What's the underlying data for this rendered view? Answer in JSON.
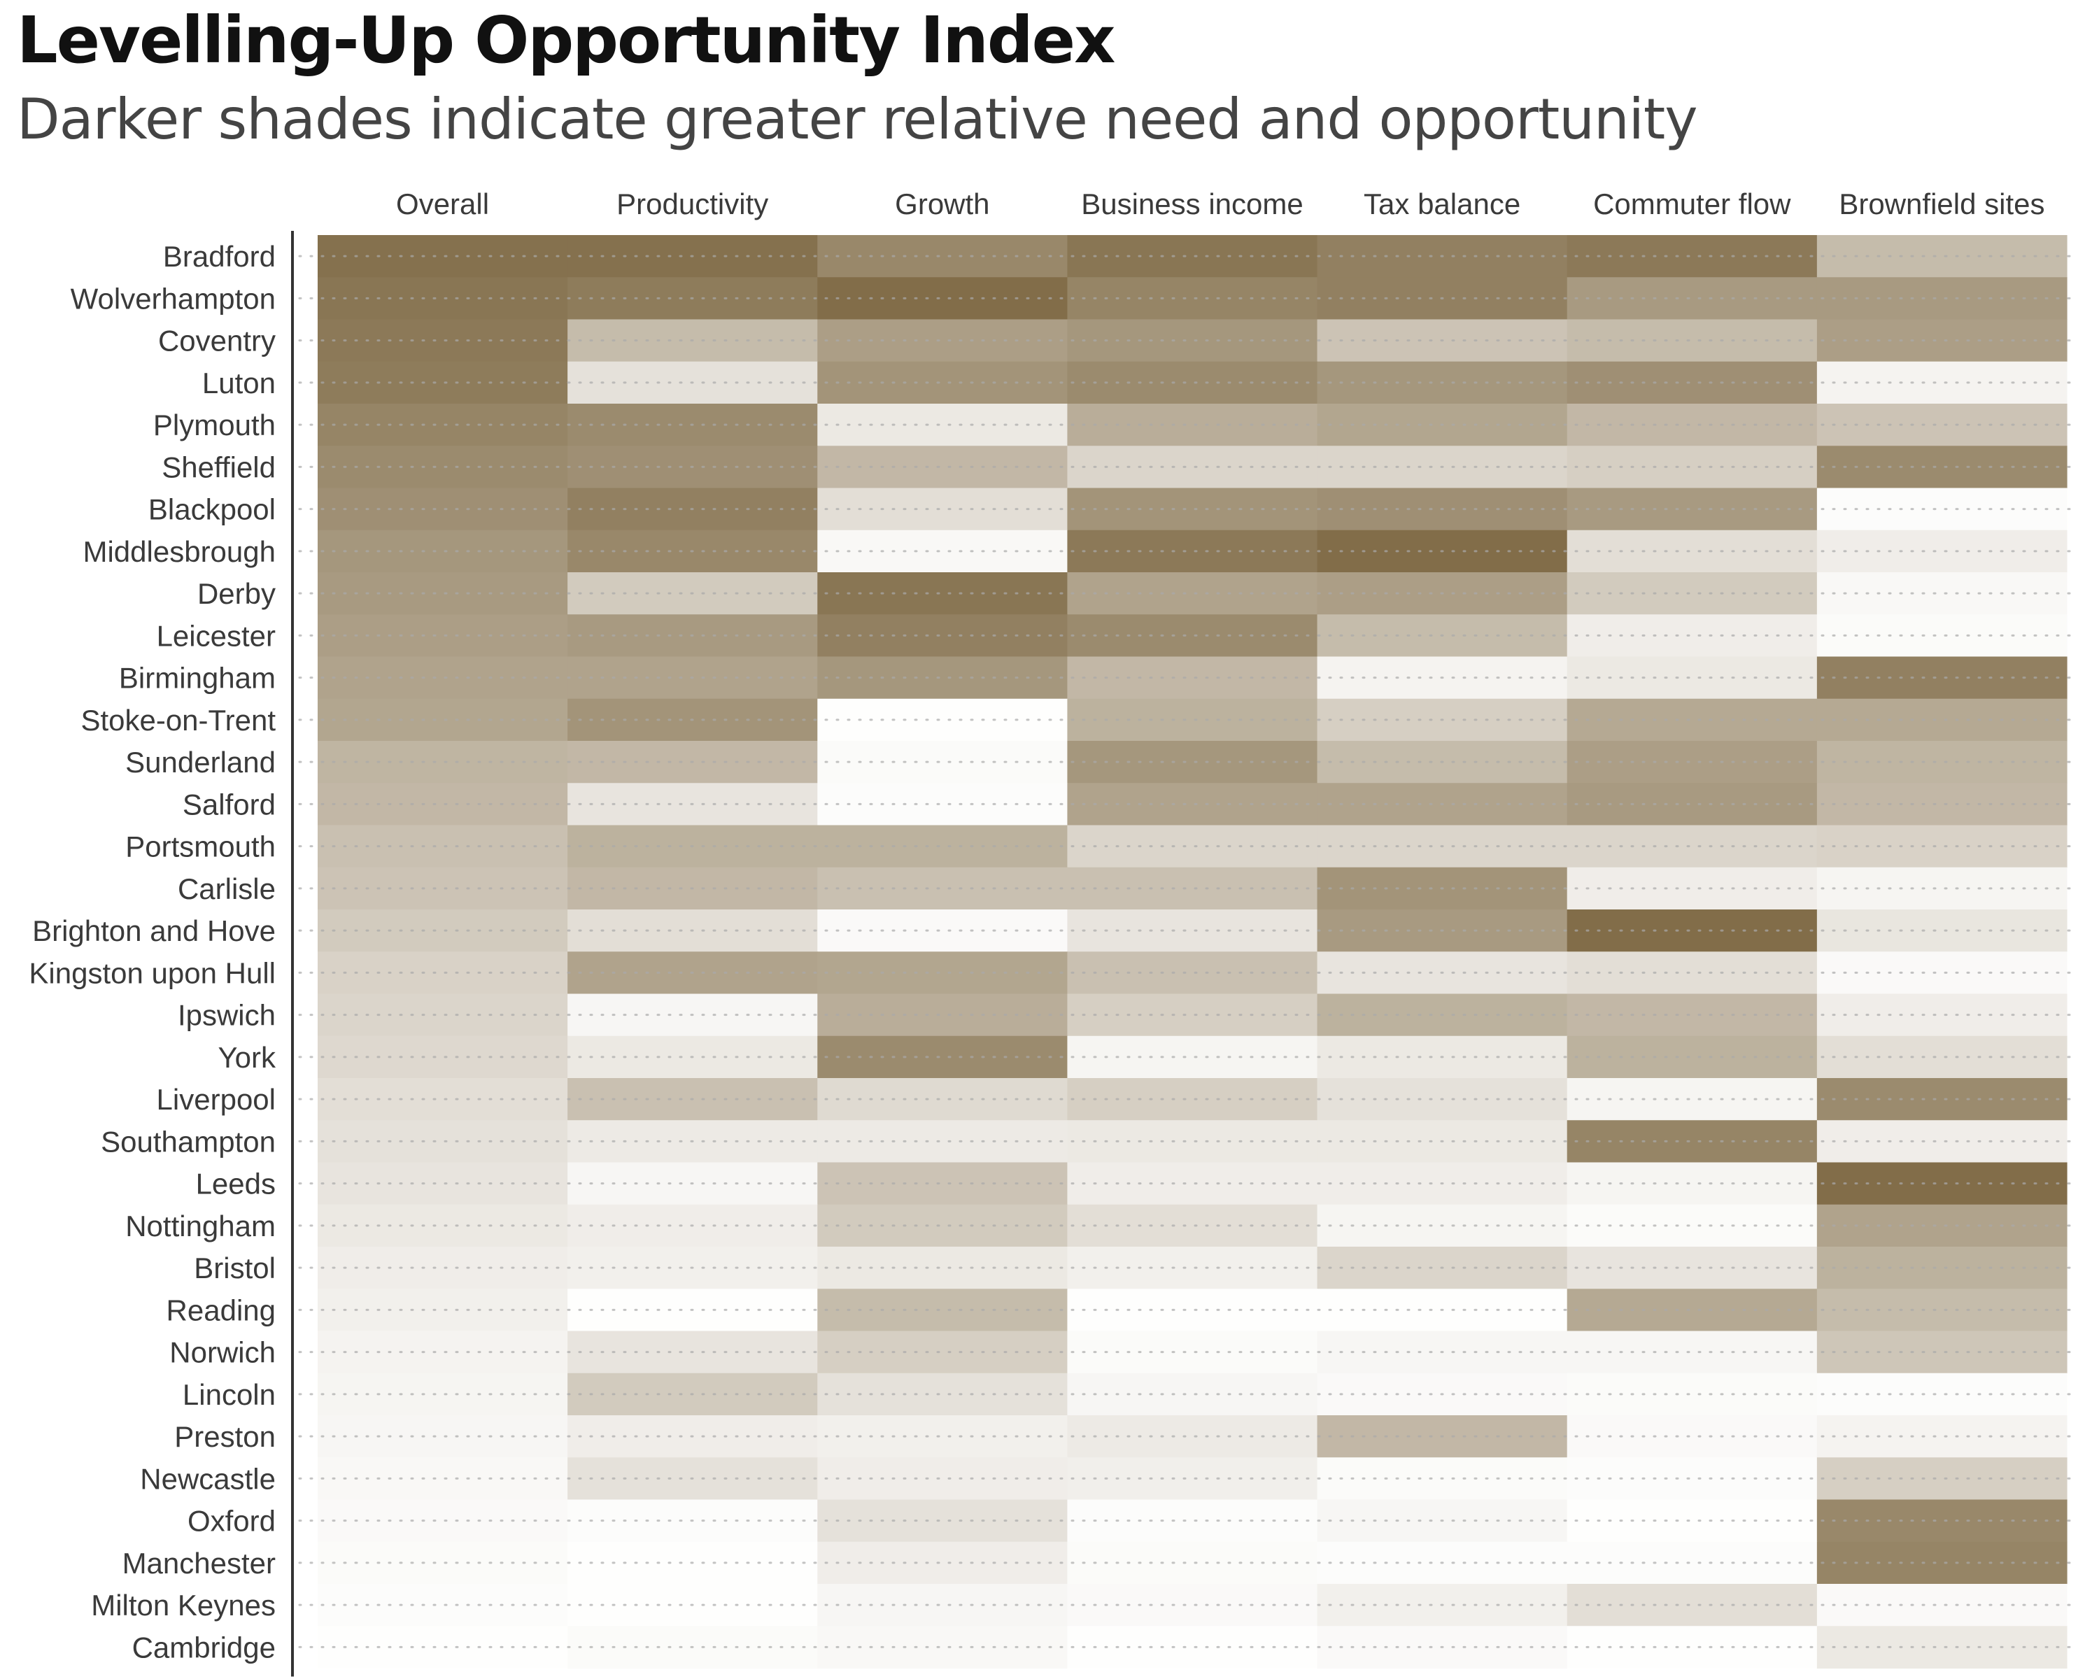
{
  "title": "Levelling-Up Opportunity Index",
  "subtitle": "Darker shades indicate greater relative need and opportunity",
  "colors": {
    "max": "#7f6a45",
    "min": "#ffffff",
    "text": "#3a3a3a",
    "dots": "#aaaaaa",
    "axis": "#333333"
  },
  "chart_data": {
    "type": "heatmap",
    "title": "Levelling-Up Opportunity Index",
    "subtitle": "Darker shades indicate greater relative need and opportunity",
    "value_range": [
      0,
      1
    ],
    "grid": "dotted row guides",
    "columns": [
      "Overall",
      "Productivity",
      "Growth",
      "Business income",
      "Tax balance",
      "Commuter flow",
      "Brownfield sites"
    ],
    "rows": [
      {
        "name": "Bradford",
        "values": [
          0.95,
          0.95,
          0.8,
          0.92,
          0.85,
          0.9,
          0.45
        ]
      },
      {
        "name": "Wolverhampton",
        "values": [
          0.92,
          0.88,
          0.98,
          0.82,
          0.85,
          0.68,
          0.68
        ]
      },
      {
        "name": "Coventry",
        "values": [
          0.9,
          0.45,
          0.65,
          0.7,
          0.4,
          0.45,
          0.65
        ]
      },
      {
        "name": "Luton",
        "values": [
          0.88,
          0.2,
          0.72,
          0.78,
          0.7,
          0.75,
          0.08
        ]
      },
      {
        "name": "Plymouth",
        "values": [
          0.82,
          0.78,
          0.15,
          0.55,
          0.6,
          0.48,
          0.4
        ]
      },
      {
        "name": "Sheffield",
        "values": [
          0.78,
          0.75,
          0.48,
          0.28,
          0.28,
          0.32,
          0.78
        ]
      },
      {
        "name": "Blackpool",
        "values": [
          0.75,
          0.85,
          0.22,
          0.72,
          0.75,
          0.68,
          0.02
        ]
      },
      {
        "name": "Middlesbrough",
        "values": [
          0.7,
          0.8,
          0.05,
          0.9,
          0.98,
          0.22,
          0.12
        ]
      },
      {
        "name": "Derby",
        "values": [
          0.68,
          0.35,
          0.92,
          0.62,
          0.65,
          0.35,
          0.05
        ]
      },
      {
        "name": "Leicester",
        "values": [
          0.65,
          0.68,
          0.85,
          0.78,
          0.45,
          0.12,
          0.03
        ]
      },
      {
        "name": "Birmingham",
        "values": [
          0.62,
          0.62,
          0.7,
          0.48,
          0.08,
          0.15,
          0.85
        ]
      },
      {
        "name": "Stoke-on-Trent",
        "values": [
          0.6,
          0.72,
          0.01,
          0.52,
          0.32,
          0.58,
          0.58
        ]
      },
      {
        "name": "Sunderland",
        "values": [
          0.5,
          0.48,
          0.03,
          0.7,
          0.45,
          0.65,
          0.5
        ]
      },
      {
        "name": "Salford",
        "values": [
          0.48,
          0.18,
          0.02,
          0.62,
          0.62,
          0.68,
          0.48
        ]
      },
      {
        "name": "Portsmouth",
        "values": [
          0.42,
          0.52,
          0.52,
          0.28,
          0.28,
          0.28,
          0.3
        ]
      },
      {
        "name": "Carlisle",
        "values": [
          0.4,
          0.48,
          0.42,
          0.42,
          0.72,
          0.12,
          0.07
        ]
      },
      {
        "name": "Brighton and Hove",
        "values": [
          0.35,
          0.22,
          0.04,
          0.18,
          0.68,
          0.98,
          0.17
        ]
      },
      {
        "name": "Kingston upon Hull",
        "values": [
          0.3,
          0.62,
          0.6,
          0.42,
          0.18,
          0.22,
          0.04
        ]
      },
      {
        "name": "Ipswich",
        "values": [
          0.28,
          0.06,
          0.55,
          0.32,
          0.52,
          0.48,
          0.12
        ]
      },
      {
        "name": "York",
        "values": [
          0.26,
          0.15,
          0.78,
          0.07,
          0.15,
          0.52,
          0.22
        ]
      },
      {
        "name": "Liverpool",
        "values": [
          0.22,
          0.42,
          0.25,
          0.32,
          0.2,
          0.07,
          0.78
        ]
      },
      {
        "name": "Southampton",
        "values": [
          0.2,
          0.14,
          0.14,
          0.15,
          0.15,
          0.82,
          0.12
        ]
      },
      {
        "name": "Leeds",
        "values": [
          0.18,
          0.06,
          0.4,
          0.12,
          0.12,
          0.07,
          0.98
        ]
      },
      {
        "name": "Nottingham",
        "values": [
          0.15,
          0.12,
          0.35,
          0.22,
          0.07,
          0.03,
          0.62
        ]
      },
      {
        "name": "Bristol",
        "values": [
          0.12,
          0.1,
          0.15,
          0.1,
          0.28,
          0.18,
          0.52
        ]
      },
      {
        "name": "Reading",
        "values": [
          0.1,
          0.01,
          0.45,
          0.01,
          0.01,
          0.58,
          0.45
        ]
      },
      {
        "name": "Norwich",
        "values": [
          0.08,
          0.18,
          0.32,
          0.03,
          0.06,
          0.06,
          0.38
        ]
      },
      {
        "name": "Lincoln",
        "values": [
          0.07,
          0.35,
          0.2,
          0.06,
          0.04,
          0.03,
          0.02
        ]
      },
      {
        "name": "Preston",
        "values": [
          0.06,
          0.12,
          0.1,
          0.14,
          0.48,
          0.04,
          0.08
        ]
      },
      {
        "name": "Newcastle",
        "values": [
          0.05,
          0.2,
          0.12,
          0.11,
          0.03,
          0.02,
          0.32
        ]
      },
      {
        "name": "Oxford",
        "values": [
          0.04,
          0.02,
          0.2,
          0.02,
          0.06,
          0.01,
          0.8
        ]
      },
      {
        "name": "Manchester",
        "values": [
          0.03,
          0.01,
          0.12,
          0.03,
          0.02,
          0.02,
          0.82
        ]
      },
      {
        "name": "Milton Keynes",
        "values": [
          0.02,
          0.01,
          0.06,
          0.04,
          0.1,
          0.22,
          0.04
        ]
      },
      {
        "name": "Cambridge",
        "values": [
          0.01,
          0.03,
          0.05,
          0.01,
          0.04,
          0.01,
          0.15
        ]
      }
    ]
  }
}
